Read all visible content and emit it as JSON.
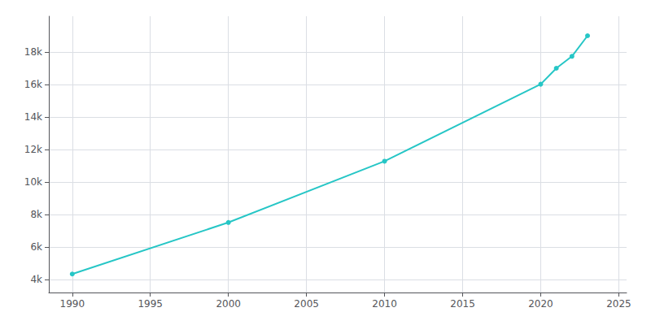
{
  "chart_data": {
    "type": "line",
    "x": [
      1990,
      2000,
      2010,
      2020,
      2021,
      2022,
      2023
    ],
    "values": [
      4338,
      7511,
      11278,
      16020,
      17000,
      17735,
      19001
    ],
    "color": "#26c6c6",
    "marker": "circle",
    "xlim": [
      1988.5,
      2025.5
    ],
    "xticks": [
      1990,
      1995,
      2000,
      2005,
      2010,
      2015,
      2020,
      2025
    ],
    "ylim": [
      3200,
      20200
    ],
    "yticks": [
      {
        "value": 4000,
        "label": "4k"
      },
      {
        "value": 6000,
        "label": "6k"
      },
      {
        "value": 8000,
        "label": "8k"
      },
      {
        "value": 10000,
        "label": "10k"
      },
      {
        "value": 12000,
        "label": "12k"
      },
      {
        "value": 14000,
        "label": "14k"
      },
      {
        "value": 16000,
        "label": "16k"
      },
      {
        "value": 18000,
        "label": "18k"
      }
    ],
    "grid": true
  }
}
